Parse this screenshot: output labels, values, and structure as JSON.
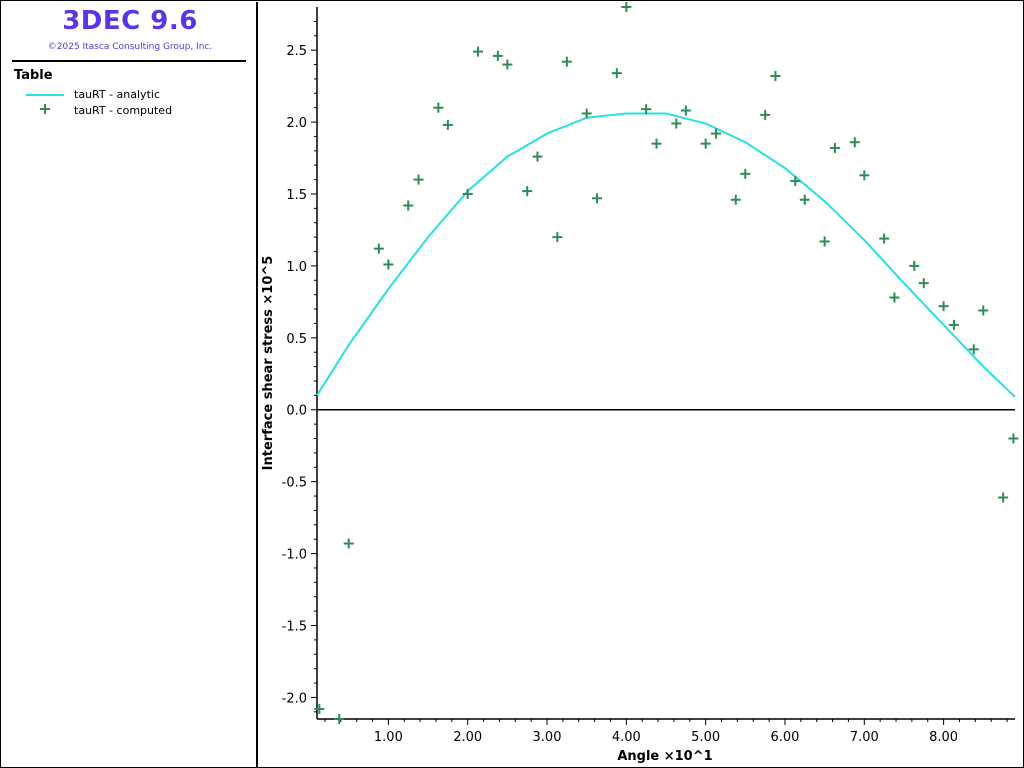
{
  "app": {
    "title": "3DEC 9.6",
    "copyright": "©2025 Itasca Consulting Group, Inc."
  },
  "legend": {
    "title": "Table",
    "items": [
      {
        "label": "tauRT - analytic",
        "symbol": "line",
        "color": "#26e0e6"
      },
      {
        "label": "tauRT - computed",
        "symbol": "plus",
        "color": "#2e8b57"
      }
    ]
  },
  "chart_data": {
    "type": "scatter",
    "xlabel": "Angle ×10^1",
    "ylabel": "Interface shear stress ×10^5",
    "xlim": [
      0.1,
      8.9
    ],
    "ylim": [
      -2.15,
      2.8
    ],
    "x_ticks": [
      "1.00",
      "2.00",
      "3.00",
      "4.00",
      "5.00",
      "6.00",
      "7.00",
      "8.00"
    ],
    "x_tick_values": [
      1,
      2,
      3,
      4,
      5,
      6,
      7,
      8
    ],
    "y_ticks": [
      "2.5",
      "2.0",
      "1.5",
      "1.0",
      "0.5",
      "0.0",
      "-0.5",
      "-1.0",
      "-1.5",
      "-2.0"
    ],
    "y_tick_values": [
      2.5,
      2.0,
      1.5,
      1.0,
      0.5,
      0.0,
      -0.5,
      -1.0,
      -1.5,
      -2.0
    ],
    "series": [
      {
        "name": "tauRT - analytic",
        "type": "line",
        "color": "#26e0e6",
        "x": [
          0.1,
          0.5,
          1.0,
          1.5,
          2.0,
          2.5,
          3.0,
          3.5,
          4.0,
          4.5,
          5.0,
          5.5,
          6.0,
          6.5,
          7.0,
          7.5,
          8.0,
          8.5,
          8.9
        ],
        "y": [
          0.1,
          0.45,
          0.84,
          1.2,
          1.52,
          1.76,
          1.92,
          2.03,
          2.06,
          2.06,
          1.99,
          1.86,
          1.68,
          1.45,
          1.18,
          0.88,
          0.59,
          0.3,
          0.09
        ]
      },
      {
        "name": "tauRT - computed",
        "type": "scatter",
        "marker": "plus",
        "color": "#2e8b57",
        "x": [
          0.13,
          0.38,
          0.5,
          0.88,
          1.0,
          1.25,
          1.38,
          1.63,
          1.75,
          2.0,
          2.13,
          2.38,
          2.5,
          2.75,
          2.88,
          3.13,
          3.25,
          3.5,
          3.63,
          3.88,
          4.0,
          4.25,
          4.38,
          4.63,
          4.75,
          5.0,
          5.13,
          5.38,
          5.5,
          5.75,
          5.88,
          6.13,
          6.25,
          6.5,
          6.63,
          6.88,
          7.0,
          7.25,
          7.38,
          7.63,
          7.75,
          8.0,
          8.13,
          8.38,
          8.5,
          8.75,
          8.88
        ],
        "y": [
          -2.08,
          -2.15,
          -0.93,
          1.12,
          1.01,
          1.42,
          1.6,
          2.1,
          1.98,
          1.5,
          2.49,
          2.46,
          2.4,
          1.52,
          1.76,
          1.2,
          2.42,
          2.06,
          1.47,
          2.34,
          2.8,
          2.09,
          1.85,
          1.99,
          2.08,
          1.85,
          1.92,
          1.46,
          1.64,
          2.05,
          2.32,
          1.59,
          1.46,
          1.17,
          1.82,
          1.86,
          1.63,
          1.19,
          0.78,
          1.0,
          0.88,
          0.72,
          0.59,
          0.42,
          0.69,
          -0.61,
          -0.2
        ]
      }
    ]
  }
}
